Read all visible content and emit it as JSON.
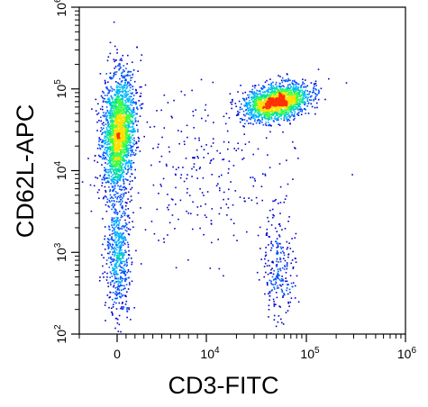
{
  "chart_data": {
    "type": "scatter",
    "subtype": "flow-cytometry density dot plot",
    "xlabel": "CD3-FITC",
    "ylabel": "CD62L-APC",
    "x_scale": "biexponential",
    "y_scale": "log",
    "xlim": [
      -1000,
      1000000
    ],
    "ylim": [
      100,
      1000000
    ],
    "x_ticks": [
      {
        "value": 0,
        "base": "0",
        "exp": ""
      },
      {
        "value": 10000,
        "base": "10",
        "exp": "4"
      },
      {
        "value": 100000,
        "base": "10",
        "exp": "5"
      },
      {
        "value": 1000000,
        "base": "10",
        "exp": "6"
      }
    ],
    "y_ticks": [
      {
        "value": 100,
        "base": "10",
        "exp": "2"
      },
      {
        "value": 1000,
        "base": "10",
        "exp": "3"
      },
      {
        "value": 10000,
        "base": "10",
        "exp": "4"
      },
      {
        "value": 100000,
        "base": "10",
        "exp": "5"
      },
      {
        "value": 1000000,
        "base": "10",
        "exp": "6"
      }
    ],
    "grid": false,
    "legend": "none",
    "colormap": [
      "#0000cc",
      "#0050ff",
      "#00b4ff",
      "#00e0a0",
      "#40ff40",
      "#ffe000",
      "#ff3000"
    ],
    "populations": [
      {
        "center_x": 100,
        "center_y": 30000,
        "events": 2200
      },
      {
        "center_x": 50000,
        "center_y": 70000,
        "events": 1800
      },
      {
        "center_x": 50000,
        "center_y": 700,
        "events": 250
      },
      {
        "center_x": 100,
        "center_y": 1000,
        "events": 600
      },
      {
        "center_x": 10000,
        "center_y": 10000,
        "events": 250
      }
    ]
  }
}
